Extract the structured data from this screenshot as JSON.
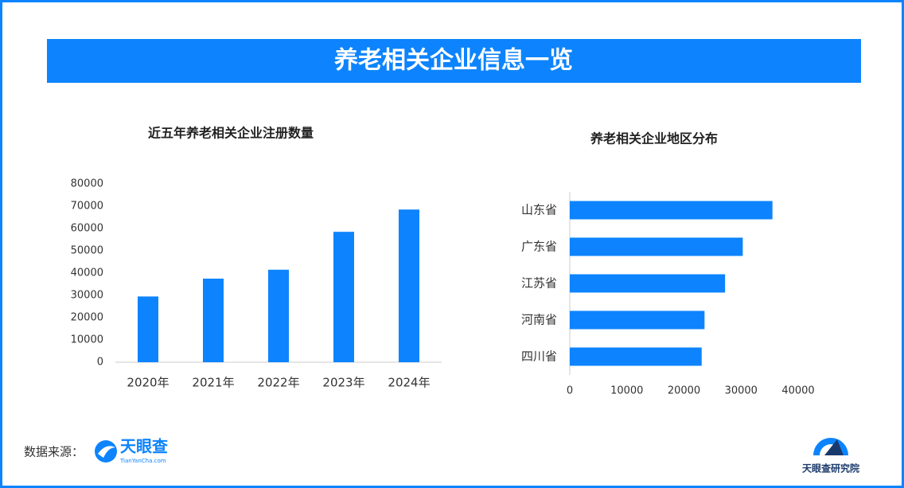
{
  "title": "养老相关企业信息一览",
  "chart_data": [
    {
      "type": "bar",
      "title": "近五年养老相关企业注册数量",
      "categories": [
        "2020年",
        "2021年",
        "2022年",
        "2023年",
        "2024年"
      ],
      "values": [
        29500,
        37500,
        41500,
        58500,
        68500
      ],
      "color": "#0d84fd",
      "ylim": [
        0,
        80000
      ],
      "yticks": [
        0,
        10000,
        20000,
        30000,
        40000,
        50000,
        60000,
        70000,
        80000
      ],
      "grid": false
    },
    {
      "type": "barh",
      "title": "养老相关企业地区分布",
      "categories": [
        "山东省",
        "广东省",
        "江苏省",
        "河南省",
        "四川省"
      ],
      "values": [
        35500,
        30300,
        27200,
        23600,
        23100
      ],
      "color": "#0d84fd",
      "xlim": [
        0,
        40000
      ],
      "xticks": [
        0,
        10000,
        20000,
        30000,
        40000
      ],
      "grid": false
    }
  ],
  "source": {
    "label": "数据来源：",
    "logo": "天眼查",
    "logo_sub": "TianYanCha.com"
  },
  "brand": "天眼查研究院"
}
